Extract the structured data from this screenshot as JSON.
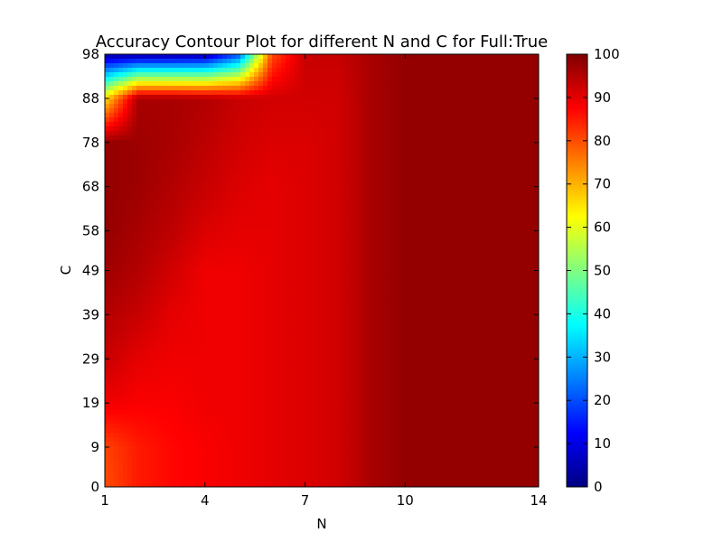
{
  "chart_data": {
    "type": "heatmap",
    "title": "Accuracy Contour Plot for different N and C for Full:True",
    "xlabel": "N",
    "ylabel": "C",
    "x_ticks": [
      1,
      4,
      7,
      10,
      14
    ],
    "y_ticks": [
      0,
      9,
      19,
      29,
      39,
      49,
      58,
      68,
      78,
      88,
      98
    ],
    "xlim": [
      1,
      14
    ],
    "ylim": [
      0,
      98
    ],
    "colormap": "jet",
    "colorbar": {
      "range": [
        0,
        100
      ],
      "ticks": [
        0,
        10,
        20,
        30,
        40,
        50,
        60,
        70,
        80,
        90,
        100
      ]
    },
    "x": [
      1,
      2,
      3,
      4,
      5,
      6,
      7,
      8,
      9,
      10,
      11,
      12,
      13,
      14
    ],
    "y": [
      0,
      9,
      19,
      29,
      39,
      49,
      58,
      68,
      78,
      88,
      98
    ],
    "z": [
      [
        80,
        85,
        87,
        88,
        89,
        90,
        91,
        92,
        96,
        98,
        98,
        98,
        98,
        98
      ],
      [
        81,
        85,
        87,
        88,
        89,
        90,
        91,
        92,
        96,
        98,
        98,
        98,
        98,
        98
      ],
      [
        89,
        88,
        88,
        89,
        89,
        90,
        91,
        92,
        96,
        98,
        98,
        98,
        98,
        98
      ],
      [
        93,
        90,
        89,
        89,
        89,
        90,
        91,
        92,
        96,
        98,
        98,
        98,
        98,
        98
      ],
      [
        95,
        93,
        90,
        89,
        89,
        90,
        91,
        92,
        96,
        98,
        98,
        98,
        98,
        98
      ],
      [
        97,
        95,
        92,
        89,
        89,
        90,
        91,
        92,
        96,
        98,
        98,
        98,
        98,
        98
      ],
      [
        98,
        96,
        94,
        91,
        90,
        90,
        91,
        92,
        96,
        98,
        98,
        98,
        98,
        98
      ],
      [
        98,
        97,
        95,
        93,
        91,
        90,
        91,
        92,
        96,
        98,
        98,
        98,
        98,
        98
      ],
      [
        98,
        97,
        96,
        94,
        92,
        91,
        91,
        92,
        96,
        98,
        98,
        98,
        98,
        98
      ],
      [
        65,
        96,
        96,
        95,
        93,
        92,
        92,
        92,
        96,
        98,
        98,
        98,
        98,
        98
      ],
      [
        3,
        3,
        3,
        4,
        20,
        80,
        93,
        93,
        96,
        98,
        98,
        98,
        98,
        98
      ]
    ]
  }
}
